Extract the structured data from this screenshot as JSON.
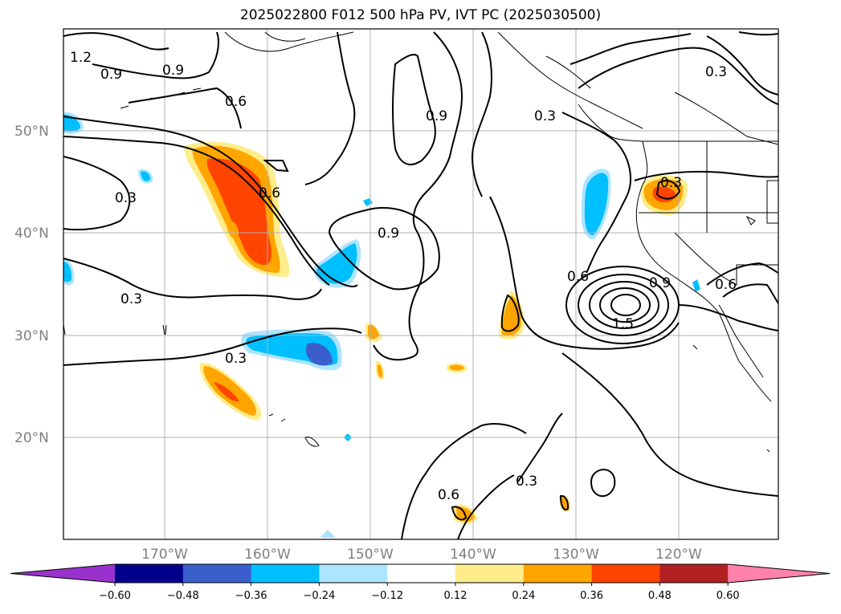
{
  "title": "2025022800 F012 500 hPa PV, IVT PC (2025030500)",
  "lat_labels": [
    "50°N",
    "40°N",
    "30°N",
    "20°N"
  ],
  "lon_labels": [
    "170°W",
    "160°W",
    "150°W",
    "140°W",
    "130°W",
    "120°W"
  ],
  "colorbar": {
    "colors": [
      "#9932CC",
      "#00008B",
      "#3A5FCD",
      "#00BFFF",
      "#ADE4FF",
      "#FFFFFF",
      "#FFEC8B",
      "#FFA500",
      "#FF4500",
      "#B22222",
      "#FF82AB"
    ],
    "tick_labels": [
      "−0.60",
      "−0.48",
      "−0.36",
      "−0.24",
      "−0.12",
      "0.12",
      "0.24",
      "0.36",
      "0.48",
      "0.60"
    ]
  },
  "contour_labels": [
    "1.2",
    "0.9",
    "0.9",
    "0.6",
    "0.3",
    "0.6",
    "0.3",
    "0.3",
    "0.9",
    "0.9",
    "0.3",
    "0.6",
    "0.9",
    "0.3",
    "1.5",
    "0.3",
    "0.6",
    "0.3",
    "0.6"
  ]
}
